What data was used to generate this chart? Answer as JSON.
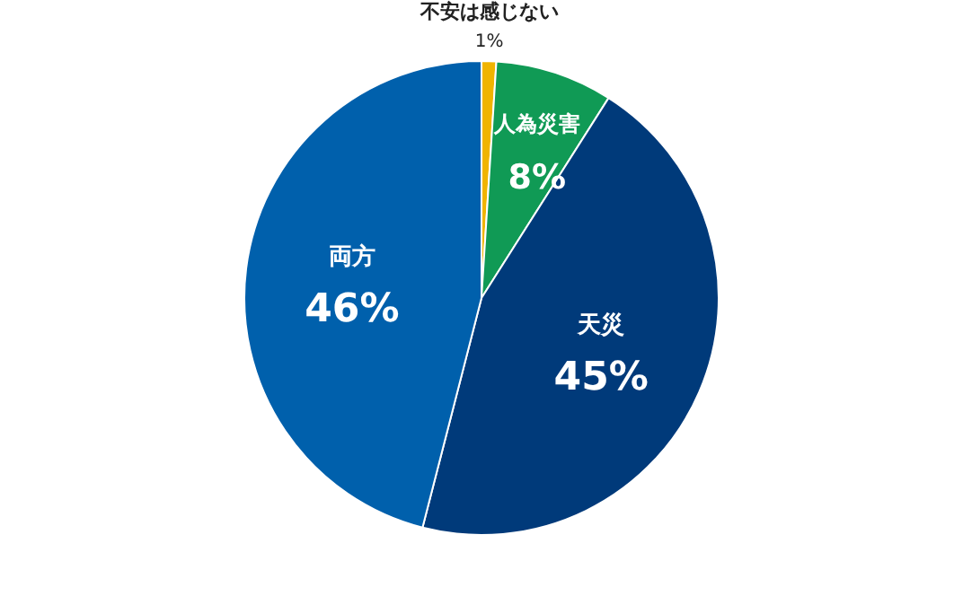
{
  "chart_data": {
    "type": "pie",
    "categories": [
      "不安は感じない",
      "人為災害",
      "天災",
      "両方"
    ],
    "values": [
      1,
      8,
      45,
      46
    ],
    "colors": [
      "#f0b400",
      "#109a55",
      "#003a7a",
      "#0060ac"
    ],
    "value_labels": [
      "1%",
      "8%",
      "45%",
      "46%"
    ]
  }
}
